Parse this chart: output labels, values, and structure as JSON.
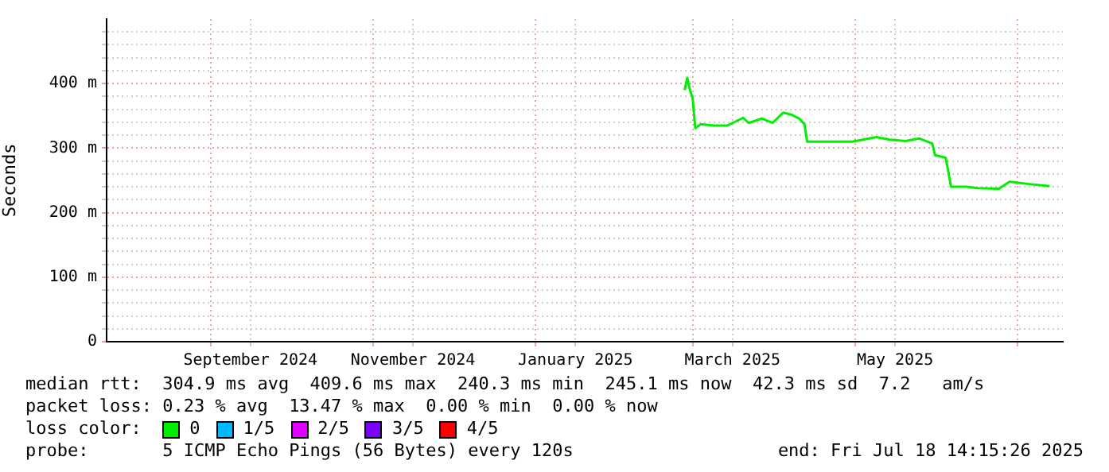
{
  "chart_data": {
    "type": "line",
    "ylabel": "Seconds",
    "x": [
      "2025-02-26",
      "2025-02-27",
      "2025-02-28",
      "2025-03-01",
      "2025-03-02",
      "2025-03-04",
      "2025-03-09",
      "2025-03-14",
      "2025-03-20",
      "2025-03-22",
      "2025-03-27",
      "2025-03-31",
      "2025-04-04",
      "2025-04-07",
      "2025-04-10",
      "2025-04-12",
      "2025-04-13",
      "2025-04-20",
      "2025-04-30",
      "2025-05-09",
      "2025-05-14",
      "2025-05-20",
      "2025-05-25",
      "2025-05-30",
      "2025-05-31",
      "2025-06-04",
      "2025-06-05",
      "2025-06-06",
      "2025-06-12",
      "2025-06-16",
      "2025-06-24",
      "2025-06-28",
      "2025-07-06",
      "2025-07-13"
    ],
    "series": [
      {
        "name": "0",
        "color": "#00ee00",
        "values": [
          390,
          409,
          390,
          378,
          331,
          337,
          335,
          335,
          347,
          339,
          346,
          339,
          355,
          352,
          346,
          337,
          310,
          310,
          310,
          317,
          313,
          311,
          315,
          307,
          289,
          285,
          264,
          240,
          240,
          238,
          237,
          248,
          244,
          241
        ]
      },
      {
        "name": "1/5",
        "color": "#00b8ff",
        "values": [
          null,
          null,
          null,
          null,
          null,
          null,
          null,
          null,
          null,
          null,
          null,
          null,
          null,
          null,
          null,
          null,
          null,
          null,
          null,
          null,
          null,
          null,
          null,
          null,
          null,
          null,
          null,
          null,
          null,
          null,
          null,
          null,
          null,
          null
        ]
      },
      {
        "name": "2/5",
        "color": "#e000ff",
        "values": [
          null,
          null,
          null,
          null,
          null,
          null,
          null,
          null,
          null,
          null,
          null,
          null,
          null,
          null,
          null,
          null,
          null,
          null,
          null,
          null,
          null,
          null,
          null,
          null,
          null,
          null,
          null,
          null,
          null,
          null,
          null,
          null,
          null,
          null
        ]
      },
      {
        "name": "3/5",
        "color": "#7a00ff",
        "values": [
          null,
          null,
          null,
          null,
          null,
          null,
          null,
          null,
          null,
          null,
          null,
          null,
          null,
          null,
          null,
          null,
          null,
          null,
          null,
          null,
          null,
          null,
          null,
          null,
          null,
          null,
          null,
          null,
          null,
          null,
          null,
          null,
          null,
          null
        ]
      },
      {
        "name": "4/5",
        "color": "#ff0000",
        "values": [
          null,
          null,
          null,
          null,
          null,
          null,
          null,
          null,
          null,
          null,
          null,
          null,
          null,
          null,
          null,
          null,
          null,
          null,
          null,
          null,
          null,
          null,
          null,
          null,
          null,
          null,
          null,
          null,
          null,
          null,
          null,
          null,
          null,
          null
        ]
      }
    ],
    "legend": "bottom",
    "legend_title": "loss color:",
    "xlim": [
      "2024-07-24",
      "2025-07-18"
    ],
    "xticks": [
      {
        "value": "2024-09-01",
        "label": null
      },
      {
        "value": "2024-09-16",
        "label": "September 2024"
      },
      {
        "value": "2024-11-01",
        "label": null
      },
      {
        "value": "2024-11-16",
        "label": "November 2024"
      },
      {
        "value": "2025-01-01",
        "label": null
      },
      {
        "value": "2025-01-16",
        "label": "January 2025"
      },
      {
        "value": "2025-03-01",
        "label": null
      },
      {
        "value": "2025-03-16",
        "label": "March 2025"
      },
      {
        "value": "2025-05-01",
        "label": null
      },
      {
        "value": "2025-05-16",
        "label": "May 2025"
      },
      {
        "value": "2025-07-01",
        "label": null
      }
    ],
    "ylim": [
      0,
      500
    ],
    "yticks": [
      0,
      {
        "value": 20,
        "label": null
      },
      {
        "value": 40,
        "label": null
      },
      {
        "value": 60,
        "label": null
      },
      {
        "value": 80,
        "label": null
      },
      {
        "value": 100,
        "label": "100 m"
      },
      {
        "value": 120,
        "label": null
      },
      {
        "value": 140,
        "label": null
      },
      {
        "value": 160,
        "label": null
      },
      {
        "value": 180,
        "label": null
      },
      {
        "value": 200,
        "label": "200 m"
      },
      {
        "value": 220,
        "label": null
      },
      {
        "value": 240,
        "label": null
      },
      {
        "value": 260,
        "label": null
      },
      {
        "value": 280,
        "label": null
      },
      {
        "value": 300,
        "label": "300 m"
      },
      {
        "value": 320,
        "label": null
      },
      {
        "value": 340,
        "label": null
      },
      {
        "value": 360,
        "label": null
      },
      {
        "value": 380,
        "label": null
      },
      {
        "value": 400,
        "label": "400 m"
      },
      {
        "value": 420,
        "label": null
      },
      {
        "value": 440,
        "label": null
      },
      {
        "value": 460,
        "label": null
      },
      {
        "value": 480,
        "label": null
      }
    ],
    "grid": true,
    "marker": "none",
    "annotations": [
      "median rtt:  304.9 ms avg  409.6 ms max  240.3 ms min  245.1 ms now  42.3 ms sd  7.2   am/s",
      "packet loss: 0.23 % avg  13.47 % max  0.00 % min  0.00 % now",
      "probe:       5 ICMP Echo Pings (56 Bytes) every 120s",
      "end: Fri Jul 18 14:15:26 2025"
    ]
  }
}
